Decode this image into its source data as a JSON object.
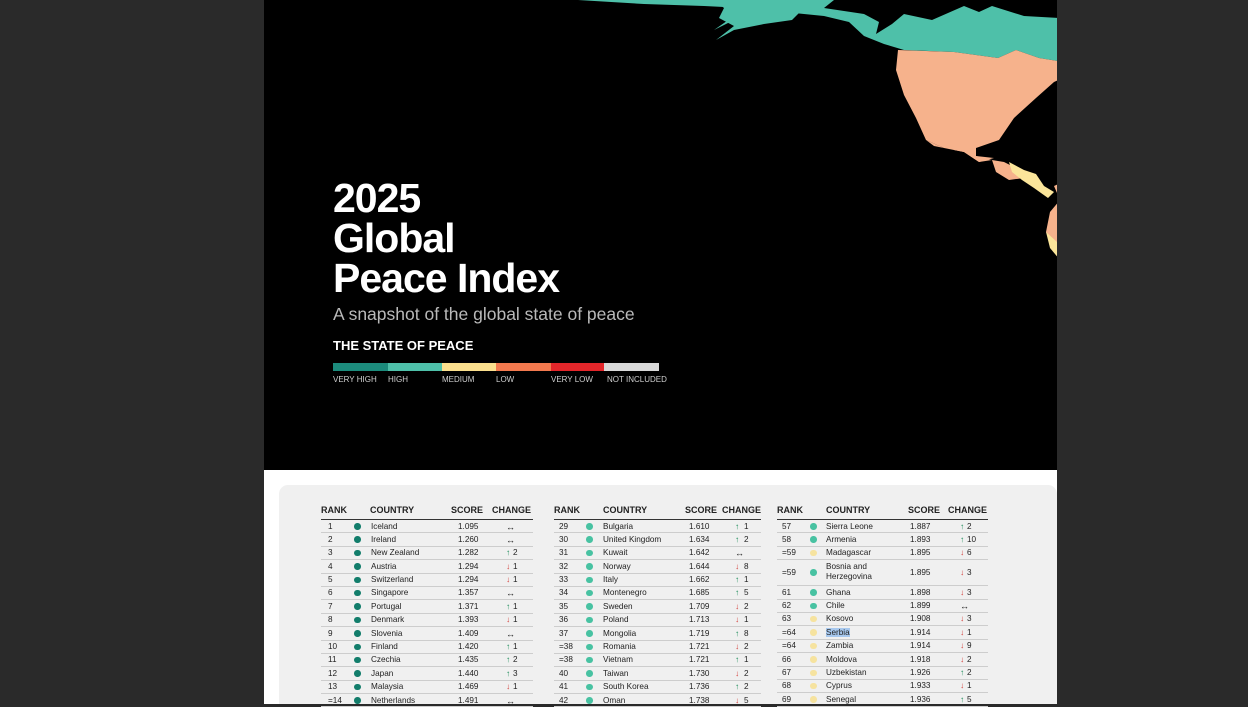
{
  "report": {
    "title_lines": [
      "2025",
      "Global",
      "Peace Index"
    ],
    "subtitle": "A snapshot of the global state of peace",
    "legend_title": "THE STATE OF PEACE",
    "legend": [
      {
        "label": "VERY HIGH",
        "color": "#1c8b7c"
      },
      {
        "label": "HIGH",
        "color": "#4ec0a9"
      },
      {
        "label": "MEDIUM",
        "color": "#fbdf8d"
      },
      {
        "label": "LOW",
        "color": "#f2794e"
      },
      {
        "label": "VERY LOW",
        "color": "#e3262a"
      },
      {
        "label": "NOT INCLUDED",
        "color": "#d8d8d8"
      }
    ]
  },
  "map_colors": {
    "north": "#4ec0a9",
    "usa": "#f6b28c",
    "central": "#f6b28c",
    "south": "#f6b28c",
    "andes": "#fbe59a",
    "cone": "#4ec0a9",
    "greenland": "#d8d8d8"
  },
  "status_colors": {
    "very_high": "#127d6b",
    "high": "#48c2a2",
    "medium": "#f6e39f",
    "low": "#f2a889"
  },
  "table": {
    "headers": {
      "rank": "RANK",
      "country": "COUNTRY",
      "score": "SCORE",
      "change": "CHANGE"
    },
    "columns": [
      [
        {
          "rank": "1",
          "status": "very_high",
          "country": "Iceland",
          "score": "1.095",
          "dir": "flat",
          "change": ""
        },
        {
          "rank": "2",
          "status": "very_high",
          "country": "Ireland",
          "score": "1.260",
          "dir": "flat",
          "change": ""
        },
        {
          "rank": "3",
          "status": "very_high",
          "country": "New Zealand",
          "score": "1.282",
          "dir": "up",
          "change": "2"
        },
        {
          "rank": "4",
          "status": "very_high",
          "country": "Austria",
          "score": "1.294",
          "dir": "down",
          "change": "1"
        },
        {
          "rank": "5",
          "status": "very_high",
          "country": "Switzerland",
          "score": "1.294",
          "dir": "down",
          "change": "1"
        },
        {
          "rank": "6",
          "status": "very_high",
          "country": "Singapore",
          "score": "1.357",
          "dir": "flat",
          "change": ""
        },
        {
          "rank": "7",
          "status": "very_high",
          "country": "Portugal",
          "score": "1.371",
          "dir": "up",
          "change": "1"
        },
        {
          "rank": "8",
          "status": "very_high",
          "country": "Denmark",
          "score": "1.393",
          "dir": "down",
          "change": "1"
        },
        {
          "rank": "9",
          "status": "very_high",
          "country": "Slovenia",
          "score": "1.409",
          "dir": "flat",
          "change": ""
        },
        {
          "rank": "10",
          "status": "very_high",
          "country": "Finland",
          "score": "1.420",
          "dir": "up",
          "change": "1"
        },
        {
          "rank": "11",
          "status": "very_high",
          "country": "Czechia",
          "score": "1.435",
          "dir": "up",
          "change": "2"
        },
        {
          "rank": "12",
          "status": "very_high",
          "country": "Japan",
          "score": "1.440",
          "dir": "up",
          "change": "3"
        },
        {
          "rank": "13",
          "status": "very_high",
          "country": "Malaysia",
          "score": "1.469",
          "dir": "down",
          "change": "1"
        },
        {
          "rank": "=14",
          "status": "very_high",
          "country": "Netherlands",
          "score": "1.491",
          "dir": "flat",
          "change": ""
        }
      ],
      [
        {
          "rank": "29",
          "status": "high",
          "country": "Bulgaria",
          "score": "1.610",
          "dir": "up",
          "change": "1"
        },
        {
          "rank": "30",
          "status": "high",
          "country": "United Kingdom",
          "score": "1.634",
          "dir": "up",
          "change": "2"
        },
        {
          "rank": "31",
          "status": "high",
          "country": "Kuwait",
          "score": "1.642",
          "dir": "flat",
          "change": ""
        },
        {
          "rank": "32",
          "status": "high",
          "country": "Norway",
          "score": "1.644",
          "dir": "down",
          "change": "8"
        },
        {
          "rank": "33",
          "status": "high",
          "country": "Italy",
          "score": "1.662",
          "dir": "up",
          "change": "1"
        },
        {
          "rank": "34",
          "status": "high",
          "country": "Montenegro",
          "score": "1.685",
          "dir": "up",
          "change": "5"
        },
        {
          "rank": "35",
          "status": "high",
          "country": "Sweden",
          "score": "1.709",
          "dir": "down",
          "change": "2"
        },
        {
          "rank": "36",
          "status": "high",
          "country": "Poland",
          "score": "1.713",
          "dir": "down",
          "change": "1"
        },
        {
          "rank": "37",
          "status": "high",
          "country": "Mongolia",
          "score": "1.719",
          "dir": "up",
          "change": "8"
        },
        {
          "rank": "=38",
          "status": "high",
          "country": "Romania",
          "score": "1.721",
          "dir": "down",
          "change": "2"
        },
        {
          "rank": "=38",
          "status": "high",
          "country": "Vietnam",
          "score": "1.721",
          "dir": "up",
          "change": "1"
        },
        {
          "rank": "40",
          "status": "high",
          "country": "Taiwan",
          "score": "1.730",
          "dir": "down",
          "change": "2"
        },
        {
          "rank": "41",
          "status": "high",
          "country": "South Korea",
          "score": "1.736",
          "dir": "up",
          "change": "2"
        },
        {
          "rank": "42",
          "status": "high",
          "country": "Oman",
          "score": "1.738",
          "dir": "down",
          "change": "5"
        }
      ],
      [
        {
          "rank": "57",
          "status": "high",
          "country": "Sierra Leone",
          "score": "1.887",
          "dir": "up",
          "change": "2"
        },
        {
          "rank": "58",
          "status": "high",
          "country": "Armenia",
          "score": "1.893",
          "dir": "up",
          "change": "10"
        },
        {
          "rank": "=59",
          "status": "medium",
          "country": "Madagascar",
          "score": "1.895",
          "dir": "down",
          "change": "6"
        },
        {
          "rank": "=59",
          "status": "high",
          "country": "Bosnia and Herzegovina",
          "score": "1.895",
          "dir": "down",
          "change": "3",
          "tall": true
        },
        {
          "rank": "61",
          "status": "high",
          "country": "Ghana",
          "score": "1.898",
          "dir": "down",
          "change": "3"
        },
        {
          "rank": "62",
          "status": "high",
          "country": "Chile",
          "score": "1.899",
          "dir": "flat",
          "change": ""
        },
        {
          "rank": "63",
          "status": "medium",
          "country": "Kosovo",
          "score": "1.908",
          "dir": "down",
          "change": "3"
        },
        {
          "rank": "=64",
          "status": "medium",
          "country": "Serbia",
          "score": "1.914",
          "dir": "down",
          "change": "1",
          "highlight": true
        },
        {
          "rank": "=64",
          "status": "medium",
          "country": "Zambia",
          "score": "1.914",
          "dir": "down",
          "change": "9"
        },
        {
          "rank": "66",
          "status": "medium",
          "country": "Moldova",
          "score": "1.918",
          "dir": "down",
          "change": "2"
        },
        {
          "rank": "67",
          "status": "medium",
          "country": "Uzbekistan",
          "score": "1.926",
          "dir": "up",
          "change": "2"
        },
        {
          "rank": "68",
          "status": "medium",
          "country": "Cyprus",
          "score": "1.933",
          "dir": "down",
          "change": "1"
        },
        {
          "rank": "69",
          "status": "medium",
          "country": "Senegal",
          "score": "1.936",
          "dir": "up",
          "change": "5"
        }
      ]
    ]
  }
}
